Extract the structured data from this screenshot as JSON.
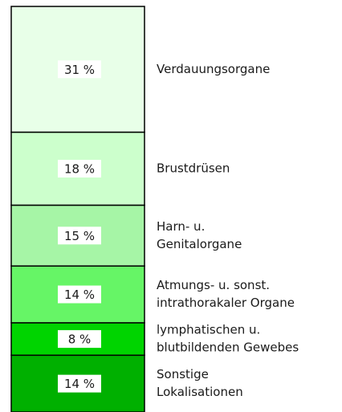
{
  "chart_data": {
    "type": "stacked-column",
    "categories": [
      [
        "Verdauungsorgane"
      ],
      [
        "Brustdrüsen"
      ],
      [
        "Harn- u.",
        "Genitalorgane"
      ],
      [
        "Atmungs- u. sonst.",
        "intrathorakaler Organe"
      ],
      [
        "lymphatischen u.",
        "blutbildenden Gewebes"
      ],
      [
        "Sonstige",
        "Lokalisationen"
      ]
    ],
    "values": [
      31,
      18,
      15,
      14,
      8,
      14
    ],
    "value_labels": [
      "31 %",
      "18 %",
      "15 %",
      "14 %",
      "8 %",
      "14 %"
    ],
    "colors": [
      "#e8ffe8",
      "#ccffcc",
      "#a6f5a6",
      "#66f566",
      "#00d400",
      "#00b000"
    ]
  }
}
